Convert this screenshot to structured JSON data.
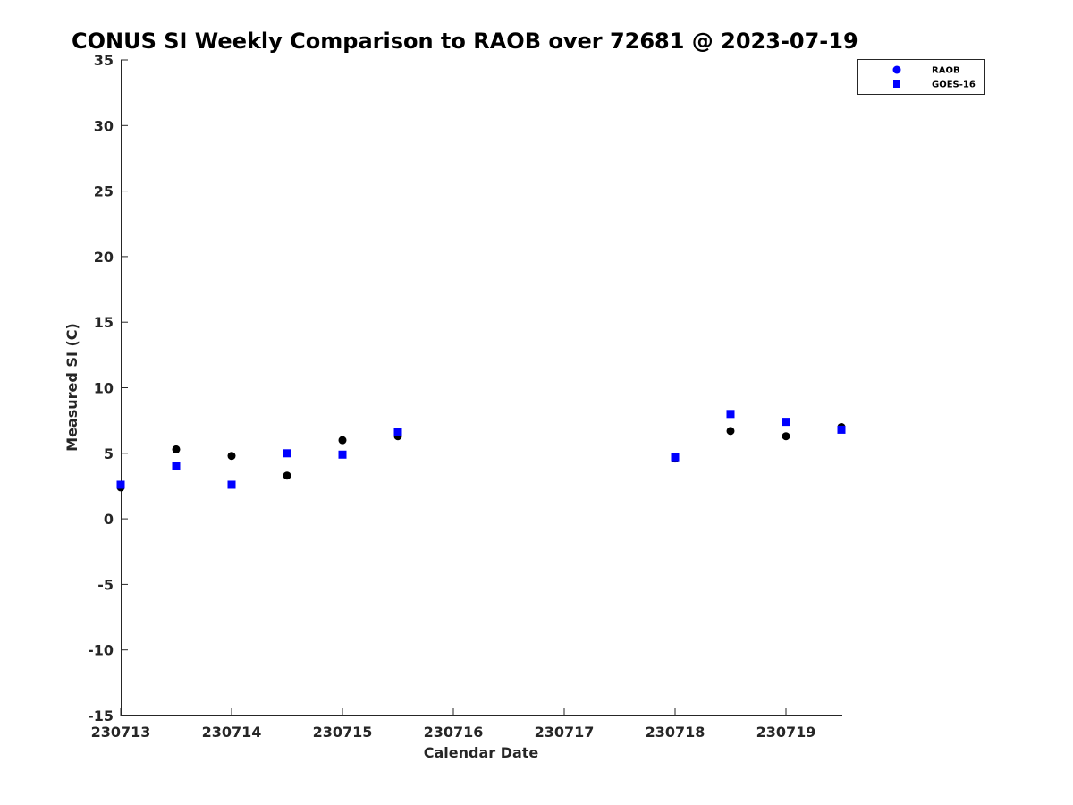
{
  "chart_data": {
    "type": "scatter",
    "title": "CONUS SI Weekly Comparison to RAOB over 72681 @ 2023-07-19",
    "xlabel": "Calendar Date",
    "ylabel": "Measured SI (C)",
    "xlim": [
      230713,
      230719.5
    ],
    "ylim": [
      -15,
      35
    ],
    "x_ticks": [
      230713,
      230714,
      230715,
      230716,
      230717,
      230718,
      230719
    ],
    "x_tick_labels": [
      "230713",
      "230714",
      "230715",
      "230716",
      "230717",
      "230718",
      "230719"
    ],
    "y_ticks": [
      -15,
      -10,
      -5,
      0,
      5,
      10,
      15,
      20,
      25,
      30,
      35
    ],
    "y_tick_labels": [
      "-15",
      "-10",
      "-5",
      "0",
      "5",
      "10",
      "15",
      "20",
      "25",
      "30",
      "35"
    ],
    "grid": false,
    "legend_position": "top-right",
    "series": [
      {
        "name": "RAOB",
        "marker": "circle",
        "color": "#000000",
        "legend_color": "#0000ff",
        "x": [
          230713,
          230713.5,
          230714,
          230714.5,
          230715,
          230715.5,
          230718,
          230718.5,
          230719,
          230719.5
        ],
        "y": [
          2.4,
          5.3,
          4.8,
          3.3,
          6.0,
          6.3,
          4.6,
          6.7,
          6.3,
          7.0
        ]
      },
      {
        "name": "GOES-16",
        "marker": "square",
        "color": "#0000ff",
        "legend_color": "#0000ff",
        "x": [
          230713,
          230713.5,
          230714,
          230714.5,
          230715,
          230715.5,
          230718,
          230718.5,
          230719,
          230719.5
        ],
        "y": [
          2.6,
          4.0,
          2.6,
          5.0,
          4.9,
          6.6,
          4.7,
          8.0,
          7.4,
          6.8
        ]
      }
    ]
  }
}
